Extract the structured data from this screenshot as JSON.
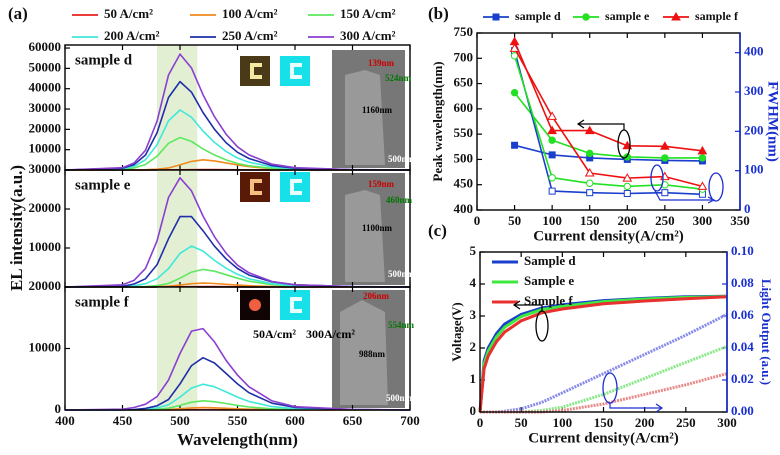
{
  "chart_data": [
    {
      "type": "line",
      "panel_label": "(a)",
      "ylabel": "EL intensity(a.u.)",
      "sample_label": "sample d",
      "xlim": [
        400,
        700
      ],
      "xticks": [
        400,
        450,
        500,
        550,
        600,
        650,
        700
      ],
      "xtick_labels": false,
      "ylim": [
        0,
        61500
      ],
      "yticks": [
        10000,
        20000,
        30000,
        40000,
        50000,
        60000
      ],
      "highlight_range": [
        480,
        515
      ],
      "legend": "top-outside",
      "annotations": [
        "139nm",
        "524nm",
        "1160nm",
        "500nm"
      ],
      "x": [
        400,
        450,
        460,
        470,
        480,
        490,
        500,
        510,
        520,
        530,
        540,
        550,
        560,
        580,
        600,
        650,
        700
      ],
      "series": [
        {
          "name": "50 A/cm²",
          "color": "#e8201c",
          "values": [
            0,
            0,
            0,
            10,
            20,
            50,
            100,
            170,
            200,
            180,
            140,
            100,
            66,
            26,
            10,
            2,
            0
          ]
        },
        {
          "name": "100 A/cm²",
          "color": "#f08a1e",
          "values": [
            0,
            0,
            50,
            150,
            400,
            1000,
            2500,
            4250,
            5000,
            4500,
            3500,
            2500,
            1650,
            650,
            250,
            50,
            0
          ]
        },
        {
          "name": "150 A/cm²",
          "color": "#5ee85e",
          "values": [
            0,
            320,
            960,
            2720,
            6720,
            13120,
            16000,
            14080,
            10400,
            7360,
            4960,
            3200,
            2080,
            800,
            320,
            48,
            0
          ]
        },
        {
          "name": "200 A/cm²",
          "color": "#40e8d8",
          "values": [
            0,
            590,
            1770,
            5015,
            12390,
            24190,
            29500,
            25960,
            19175,
            13570,
            9145,
            5900,
            3835,
            1475,
            590,
            89,
            0
          ]
        },
        {
          "name": "250 A/cm²",
          "color": "#1f2fa8",
          "values": [
            0,
            870,
            2610,
            7395,
            18270,
            35670,
            43500,
            38280,
            28275,
            20010,
            13485,
            8700,
            5655,
            2175,
            870,
            130,
            0
          ]
        },
        {
          "name": "300 A/cm²",
          "color": "#8a3fd0",
          "values": [
            0,
            1140,
            3420,
            9690,
            23940,
            46740,
            57000,
            50160,
            37050,
            26220,
            17670,
            11400,
            7410,
            2850,
            1140,
            171,
            0
          ]
        }
      ]
    },
    {
      "type": "line",
      "sample_label": "sample e",
      "xlim": [
        400,
        700
      ],
      "xticks": [
        400,
        450,
        500,
        550,
        600,
        650,
        700
      ],
      "xtick_labels": false,
      "ylim": [
        0,
        30000
      ],
      "yticks": [
        10000,
        20000,
        30000
      ],
      "highlight_range": [
        480,
        515
      ],
      "annotations": [
        "159nm",
        "460nm",
        "1100nm",
        "500nm"
      ],
      "x": [
        400,
        450,
        460,
        470,
        480,
        490,
        500,
        510,
        520,
        530,
        540,
        550,
        560,
        580,
        600,
        650,
        700
      ],
      "series": [
        {
          "color": "#e8201c",
          "values": [
            0,
            0,
            1,
            3,
            8,
            20,
            50,
            85,
            100,
            90,
            70,
            50,
            33,
            13,
            5,
            1,
            0
          ]
        },
        {
          "color": "#f08a1e",
          "values": [
            0,
            0,
            10,
            30,
            80,
            200,
            500,
            850,
            1000,
            900,
            700,
            500,
            330,
            130,
            50,
            10,
            0
          ]
        },
        {
          "color": "#5ee85e",
          "values": [
            0,
            0,
            45,
            135,
            360,
            900,
            2250,
            3825,
            4500,
            4050,
            3150,
            2250,
            1485,
            585,
            225,
            45,
            0
          ]
        },
        {
          "color": "#40e8d8",
          "values": [
            0,
            105,
            315,
            840,
            2100,
            4725,
            8610,
            10500,
            9240,
            6825,
            4830,
            3255,
            2100,
            840,
            315,
            53,
            0
          ]
        },
        {
          "color": "#1f2fa8",
          "values": [
            0,
            190,
            760,
            2090,
            5700,
            12350,
            18050,
            18050,
            14440,
            10450,
            7220,
            4750,
            3040,
            1330,
            570,
            95,
            0
          ]
        },
        {
          "color": "#8a3fd0",
          "values": [
            0,
            560,
            1680,
            4760,
            11760,
            22960,
            28000,
            24640,
            18200,
            12880,
            8680,
            5600,
            3640,
            1400,
            560,
            84,
            0
          ]
        }
      ]
    },
    {
      "type": "line",
      "sample_label": "sample f",
      "xlabel": "Wavelength(nm)",
      "xlim": [
        400,
        700
      ],
      "xticks": [
        400,
        450,
        500,
        550,
        600,
        650,
        700
      ],
      "ylim": [
        0,
        20000
      ],
      "yticks": [
        0,
        10000,
        20000
      ],
      "highlight_range": [
        480,
        515
      ],
      "annotations": [
        "206nm",
        "554nm",
        "988nm",
        "500nm",
        "50A/cm²",
        "300A/cm²"
      ],
      "x": [
        400,
        450,
        460,
        470,
        480,
        490,
        500,
        510,
        520,
        530,
        540,
        550,
        560,
        580,
        600,
        650,
        700
      ],
      "series": [
        {
          "color": "#e8201c",
          "values": [
            0,
            0,
            1,
            2,
            4,
            10,
            25,
            43,
            50,
            45,
            35,
            25,
            17,
            7,
            3,
            1,
            0
          ]
        },
        {
          "color": "#f08a1e",
          "values": [
            0,
            0,
            4,
            12,
            32,
            80,
            200,
            340,
            400,
            360,
            280,
            200,
            132,
            52,
            20,
            4,
            0
          ]
        },
        {
          "color": "#5ee85e",
          "values": [
            0,
            0,
            15,
            45,
            120,
            300,
            750,
            1275,
            1500,
            1350,
            1050,
            750,
            495,
            195,
            75,
            15,
            0
          ]
        },
        {
          "color": "#40e8d8",
          "values": [
            0,
            0,
            42,
            126,
            336,
            840,
            2100,
            3570,
            4200,
            3780,
            2940,
            2100,
            1386,
            546,
            210,
            42,
            0
          ]
        },
        {
          "color": "#1f2fa8",
          "values": [
            0,
            0,
            85,
            255,
            680,
            1700,
            4250,
            7225,
            8500,
            7650,
            5950,
            4250,
            2805,
            1105,
            425,
            85,
            0
          ]
        },
        {
          "color": "#8a3fd0",
          "values": [
            0,
            135,
            405,
            945,
            2160,
            4860,
            9180,
            12825,
            13230,
            11070,
            8100,
            5670,
            3780,
            1485,
            540,
            95,
            0
          ]
        }
      ]
    },
    {
      "type": "line-marker",
      "panel_label": "(b)",
      "xlabel": "Current density(A/cm²)",
      "ylabel": "Peak wavelength(nm)",
      "y2label": "FWHM(nm)",
      "xlim": [
        0,
        350
      ],
      "xticks": [
        0,
        50,
        100,
        150,
        200,
        250,
        300,
        350
      ],
      "ylim": [
        400,
        750
      ],
      "yticks": [
        400,
        450,
        500,
        550,
        600,
        650,
        700,
        750
      ],
      "y2lim": [
        0,
        450
      ],
      "y2ticks": [
        0,
        100,
        200,
        300,
        400
      ],
      "legend": "top-outside",
      "x": [
        50,
        100,
        150,
        200,
        250,
        300
      ],
      "series": [
        {
          "name": "sample d",
          "color": "#1a3fcc",
          "marker": "square",
          "filled": true,
          "values": [
            528,
            509,
            503,
            500,
            498,
            497
          ]
        },
        {
          "name": "sample e",
          "color": "#22e022",
          "marker": "circle",
          "filled": true,
          "values": [
            632,
            538,
            512,
            505,
            503,
            503
          ]
        },
        {
          "name": "sample f",
          "color": "#ee1111",
          "marker": "triangle",
          "filled": true,
          "values": [
            733,
            557,
            557,
            527,
            526,
            517
          ]
        },
        {
          "color": "#1a3fcc",
          "marker": "square",
          "filled": false,
          "axis": "y2",
          "values": [
            405,
            48,
            44,
            42,
            44,
            40
          ]
        },
        {
          "color": "#22e022",
          "marker": "circle",
          "filled": false,
          "axis": "y2",
          "values": [
            392,
            82,
            68,
            60,
            64,
            53
          ]
        },
        {
          "color": "#ee1111",
          "marker": "triangle",
          "filled": false,
          "axis": "y2",
          "values": [
            411,
            238,
            94,
            81,
            85,
            60
          ]
        }
      ]
    },
    {
      "type": "line",
      "panel_label": "(c)",
      "xlabel": "Current density(A/cm²)",
      "ylabel": "Voltage(V)",
      "y2label": "Light Output (a.u.)",
      "xlim": [
        0,
        300
      ],
      "xticks": [
        0,
        50,
        100,
        150,
        200,
        250,
        300
      ],
      "ylim": [
        0,
        5
      ],
      "yticks": [
        0,
        1,
        2,
        3,
        4,
        5
      ],
      "y2lim": [
        0,
        0.1
      ],
      "y2ticks": [
        {
          "value": 0,
          "label": "0.00"
        },
        {
          "value": 0.02,
          "label": "0.02"
        },
        {
          "value": 0.04,
          "label": "0.04"
        },
        {
          "value": 0.06,
          "label": "0.06"
        },
        {
          "value": 0.08,
          "label": "0.08"
        },
        {
          "value": 0.1,
          "label": "0.10"
        }
      ],
      "legend": "upper-left",
      "x": [
        0,
        5,
        10,
        20,
        30,
        50,
        75,
        100,
        150,
        200,
        250,
        300
      ],
      "series": [
        {
          "name": "Sample d",
          "color": "#1a3fcc",
          "values": [
            0,
            1.6,
            2.0,
            2.45,
            2.75,
            3.05,
            3.25,
            3.35,
            3.48,
            3.55,
            3.6,
            3.62
          ]
        },
        {
          "name": "Sample e",
          "color": "#3ee83e",
          "values": [
            0,
            1.5,
            1.9,
            2.35,
            2.65,
            2.98,
            3.2,
            3.3,
            3.45,
            3.53,
            3.58,
            3.61
          ]
        },
        {
          "name": "Sample f",
          "color": "#e83030",
          "values": [
            0,
            1.35,
            1.75,
            2.2,
            2.5,
            2.85,
            3.1,
            3.22,
            3.38,
            3.47,
            3.54,
            3.6
          ]
        },
        {
          "color": "#8a8ae8",
          "axis": "y2",
          "values": [
            0,
            0,
            0,
            0,
            0.0005,
            0.002,
            0.006,
            0.012,
            0.024,
            0.036,
            0.048,
            0.061
          ]
        },
        {
          "color": "#8ae88a",
          "axis": "y2",
          "values": [
            0,
            0,
            0,
            0,
            0,
            0,
            0.001,
            0.003,
            0.011,
            0.021,
            0.031,
            0.041
          ]
        },
        {
          "color": "#e88a8a",
          "axis": "y2",
          "values": [
            0,
            0,
            0,
            0,
            0,
            0,
            0,
            0.001,
            0.005,
            0.011,
            0.017,
            0.024
          ]
        }
      ]
    }
  ]
}
